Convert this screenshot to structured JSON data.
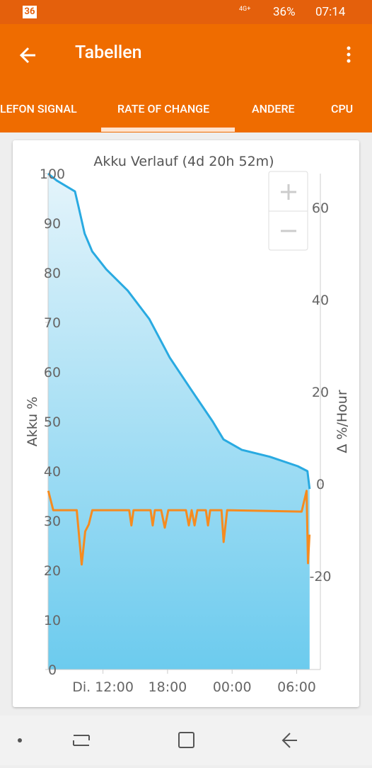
{
  "status_bar": {
    "badge": "36",
    "network": "4G+",
    "battery": "36%",
    "time": "07:14"
  },
  "app_bar": {
    "title": "Tabellen"
  },
  "tabs": [
    "LEFON SIGNAL",
    "RATE OF CHANGE",
    "ANDERE",
    "CPU"
  ],
  "chart_data": {
    "type": "line",
    "title": "Akku Verlauf (4d 20h 52m)",
    "y_label": "Akku %",
    "y2_label": "Δ %/Hour",
    "xlim": [
      6.9,
      32.2
    ],
    "xticks": [
      {
        "value": 12,
        "label": "Di. 12:00"
      },
      {
        "value": 18,
        "label": "18:00"
      },
      {
        "value": 24,
        "label": "00:00"
      },
      {
        "value": 30,
        "label": "06:00"
      }
    ],
    "ylim": [
      0,
      100
    ],
    "yticks": [
      0,
      10,
      20,
      30,
      40,
      50,
      60,
      70,
      80,
      90,
      100
    ],
    "y2lim": [
      -40.3,
      67.4
    ],
    "y2ticks": [
      -20,
      0,
      20,
      40,
      60
    ],
    "series": [
      {
        "name": "Akku",
        "color": "#29aae1",
        "x": [
          6.9,
          7.7,
          9.4,
          9.7,
          10.3,
          11.0,
          12.3,
          14.3,
          16.3,
          18.2,
          20.2,
          22.2,
          23.2,
          24.9,
          27.5,
          30.1,
          31.0,
          31.2
        ],
        "values": [
          100,
          98.6,
          96.4,
          93.6,
          87.9,
          84.3,
          80.7,
          76.4,
          70.7,
          62.9,
          56.4,
          50,
          46.4,
          44.3,
          42.9,
          41,
          40,
          36.4
        ]
      },
      {
        "name": "Δ",
        "color": "#f68b1f",
        "axis": "y2",
        "x": [
          6.92,
          7.38,
          9.56,
          10.02,
          10.35,
          10.68,
          11.01,
          14.44,
          14.64,
          14.84,
          16.42,
          16.62,
          16.82,
          17.41,
          17.74,
          18.07,
          19.71,
          19.98,
          20.24,
          20.51,
          20.77,
          21.56,
          21.76,
          21.96,
          23.01,
          23.21,
          23.54,
          30.46,
          30.92,
          31.05,
          31.19
        ],
        "values": [
          -1.5,
          -5.7,
          -5.7,
          -17.5,
          -10.3,
          -8.8,
          -5.7,
          -5.7,
          -9,
          -5.7,
          -5.7,
          -9,
          -5.7,
          -5.7,
          -9.5,
          -5.7,
          -5.7,
          -9,
          -5.7,
          -9,
          -5.7,
          -5.7,
          -9,
          -5.7,
          -5.7,
          -12.6,
          -5.7,
          -6,
          -1.5,
          -17.2,
          -11
        ]
      }
    ]
  }
}
